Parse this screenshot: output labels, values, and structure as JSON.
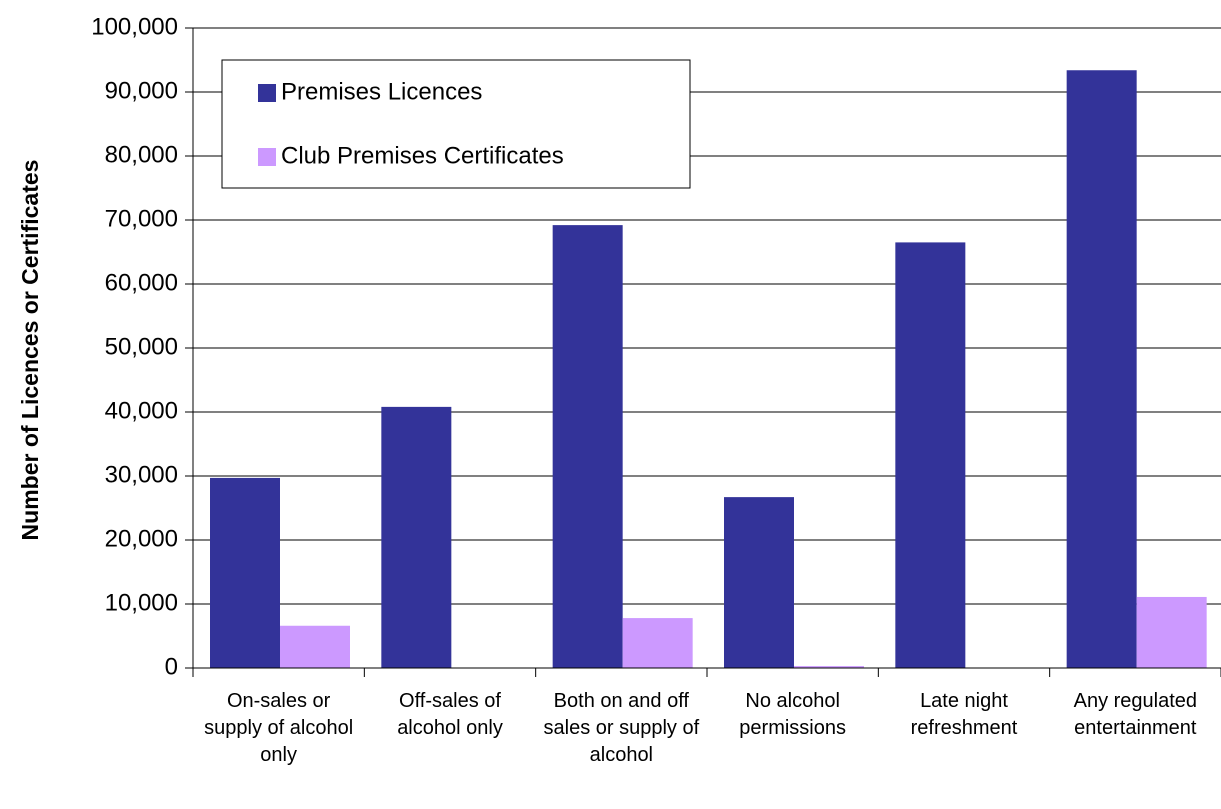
{
  "chart_data": {
    "type": "bar",
    "y_label": "Number of Licences or Certificates",
    "categories": [
      "On-sales or supply of alcohol only",
      "Off-sales of alcohol only",
      "Both on and off sales or supply of alcohol",
      "No alcohol permissions",
      "Late night refreshment",
      "Any regulated entertainment"
    ],
    "series": [
      {
        "name": "Premises Licences",
        "color": "#333399",
        "values": [
          29700,
          40800,
          69200,
          26700,
          66500,
          93400
        ]
      },
      {
        "name": "Club Premises Certificates",
        "color": "#cc99ff",
        "values": [
          6600,
          0,
          7800,
          300,
          0,
          11100
        ]
      }
    ],
    "ylim": [
      0,
      100000
    ],
    "yticks": [
      {
        "value": 0,
        "label": "0"
      },
      {
        "value": 10000,
        "label": "10,000"
      },
      {
        "value": 20000,
        "label": "20,000"
      },
      {
        "value": 30000,
        "label": "30,000"
      },
      {
        "value": 40000,
        "label": "40,000"
      },
      {
        "value": 50000,
        "label": "50,000"
      },
      {
        "value": 60000,
        "label": "60,000"
      },
      {
        "value": 70000,
        "label": "70,000"
      },
      {
        "value": 80000,
        "label": "80,000"
      },
      {
        "value": 90000,
        "label": "90,000"
      },
      {
        "value": 100000,
        "label": "100,000"
      }
    ],
    "grid": true,
    "legend": "upper-left"
  }
}
